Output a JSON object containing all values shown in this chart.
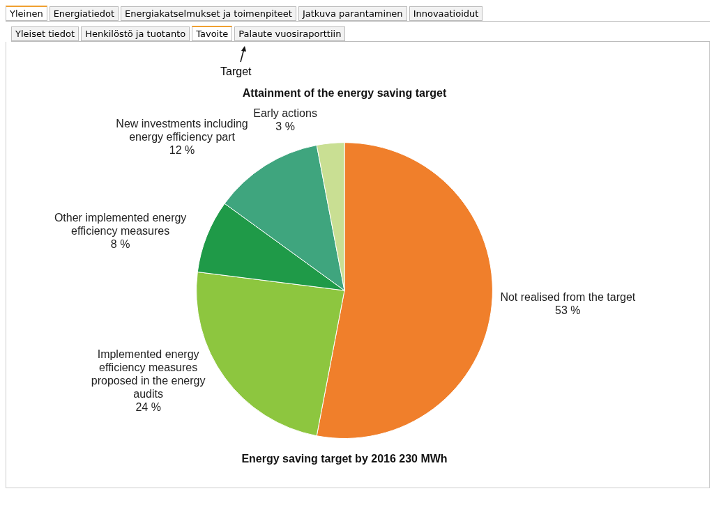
{
  "chart_data": {
    "type": "pie",
    "title": "Attainment of the energy saving target",
    "categories": [
      "Not realised from the target",
      "Implemented energy efficiency measures proposed in the energy audits",
      "Other implemented energy efficiency measures",
      "New investments including energy efficiency part",
      "Early actions"
    ],
    "values": [
      53,
      24,
      8,
      12,
      3
    ],
    "value_labels": [
      "53 %",
      "24 %",
      "8 %",
      "12 %",
      "3 %"
    ],
    "colors": [
      "#f07f2b",
      "#8dc63f",
      "#1f9a48",
      "#3fa57e",
      "#c9df93"
    ],
    "legend": false,
    "annotations": [
      "Yleinen",
      "Energiatiedot",
      "Energiakatselmukset ja toimenpiteet",
      "Jatkuva parantaminen",
      "Innovaatioidut",
      "Yleiset tiedot",
      "Henkilöstö ja tuotanto",
      "Tavoite",
      "Palaute vuosiraporttiin",
      "Target",
      "Energy saving target by 2016 230 MWh"
    ]
  }
}
